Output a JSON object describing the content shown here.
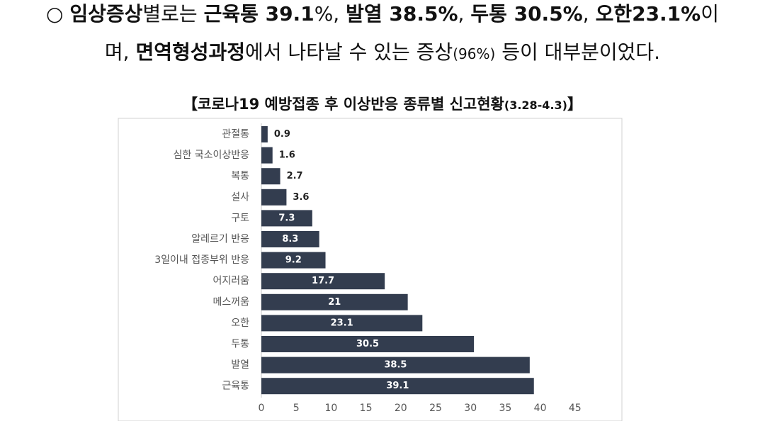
{
  "intro": {
    "line1": [
      {
        "text": "○ ",
        "bold": false
      },
      {
        "text": "임상증상",
        "bold": true
      },
      {
        "text": "별로는 ",
        "bold": false
      },
      {
        "text": "근육통 39.1",
        "bold": true
      },
      {
        "text": "%, ",
        "bold": false
      },
      {
        "text": "발열 38.5%",
        "bold": true
      },
      {
        "text": ", ",
        "bold": false
      },
      {
        "text": "두통 30.5%",
        "bold": true
      },
      {
        "text": ", ",
        "bold": false
      },
      {
        "text": "오한23.1%",
        "bold": true
      },
      {
        "text": "이",
        "bold": false
      }
    ],
    "line2": [
      {
        "text": "며, ",
        "bold": false
      },
      {
        "text": "면역형성과정",
        "bold": true
      },
      {
        "text": "에서 나타날 수 있는 증상",
        "bold": false
      },
      {
        "text": "(96%)",
        "bold": false,
        "small": true
      },
      {
        "text": " 등이 대부분이었다.",
        "bold": false
      }
    ]
  },
  "chart_title": {
    "main": "【코로나19 예방접종 후 이상반응 종류별 신고현황",
    "small": "(3.28-4.3)",
    "end": "】"
  },
  "chart_data": {
    "type": "bar",
    "orientation": "horizontal",
    "categories": [
      "관절통",
      "심한 국소이상반응",
      "복통",
      "설사",
      "구토",
      "알레르기 반응",
      "3일이내 접종부위 반응",
      "어지러움",
      "메스꺼움",
      "오한",
      "두통",
      "발열",
      "근육통"
    ],
    "values": [
      0.9,
      1.6,
      2.7,
      3.6,
      7.3,
      8.3,
      9.2,
      17.7,
      21,
      23.1,
      30.5,
      38.5,
      39.1
    ],
    "value_labels": [
      "0.9",
      "1.6",
      "2.7",
      "3.6",
      "7.3",
      "8.3",
      "9.2",
      "17.7",
      "21",
      "23.1",
      "30.5",
      "38.5",
      "39.1"
    ],
    "xlim": [
      0,
      45
    ],
    "xticks": [
      "0",
      "5",
      "10",
      "15",
      "20",
      "25",
      "30",
      "35",
      "40",
      "45"
    ],
    "bar_color": "#333d4f",
    "grid": false,
    "legend": "none"
  }
}
